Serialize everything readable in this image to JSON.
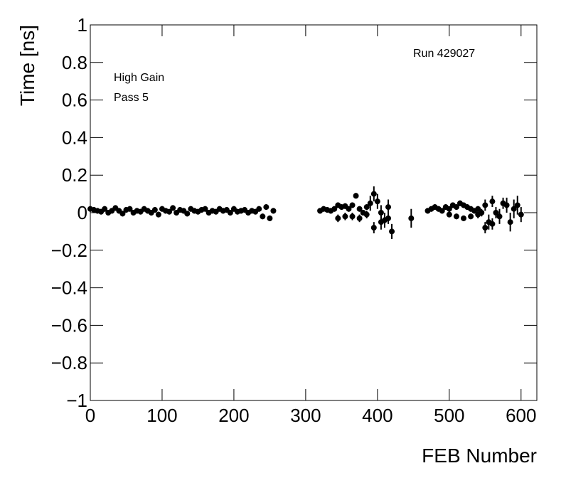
{
  "chart_data": {
    "type": "scatter",
    "ylabel": "Time [ns]",
    "xlabel": "FEB Number",
    "annotations": [
      "Run 429027",
      "High Gain",
      "Pass 5"
    ],
    "xlim": [
      0,
      622
    ],
    "ylim": [
      -1,
      1
    ],
    "xticks": [
      0,
      100,
      200,
      300,
      400,
      500,
      600
    ],
    "yticks": [
      {
        "value": -1,
        "label": "−1"
      },
      {
        "value": -0.8,
        "label": "−0.8"
      },
      {
        "value": -0.6,
        "label": "−0.6"
      },
      {
        "value": -0.4,
        "label": "−0.4"
      },
      {
        "value": -0.2,
        "label": "−0.2"
      },
      0,
      0.2,
      0.4,
      0.6,
      0.8,
      1
    ],
    "color": "#000000",
    "x": [
      0,
      5,
      10,
      15,
      20,
      25,
      30,
      35,
      40,
      45,
      50,
      55,
      60,
      65,
      70,
      75,
      80,
      85,
      90,
      95,
      100,
      105,
      110,
      115,
      120,
      125,
      130,
      135,
      140,
      145,
      150,
      155,
      160,
      165,
      170,
      175,
      180,
      185,
      190,
      195,
      200,
      205,
      210,
      215,
      220,
      225,
      230,
      235,
      240,
      245,
      250,
      255,
      320,
      325,
      330,
      335,
      340,
      345,
      350,
      355,
      360,
      365,
      370,
      375,
      380,
      385,
      390,
      395,
      400,
      405,
      410,
      415,
      420,
      345,
      355,
      365,
      375,
      385,
      395,
      405,
      415,
      447,
      470,
      475,
      480,
      485,
      490,
      495,
      500,
      505,
      510,
      515,
      520,
      525,
      530,
      535,
      540,
      545,
      550,
      555,
      560,
      565,
      570,
      575,
      580,
      585,
      590,
      595,
      600,
      500,
      510,
      520,
      530,
      540,
      550,
      560
    ],
    "y": [
      0.02,
      0.015,
      0.01,
      0.005,
      0.02,
      0.0,
      0.01,
      0.025,
      0.01,
      -0.005,
      0.015,
      0.02,
      0.0,
      0.01,
      0.005,
      0.02,
      0.01,
      0.0,
      0.015,
      -0.01,
      0.02,
      0.01,
      0.005,
      0.025,
      0.0,
      0.015,
      0.01,
      -0.005,
      0.02,
      0.01,
      0.005,
      0.015,
      0.02,
      0.0,
      0.01,
      0.005,
      0.02,
      0.01,
      0.015,
      0.0,
      0.02,
      0.005,
      0.01,
      0.015,
      0.0,
      0.01,
      0.005,
      0.02,
      -0.02,
      0.03,
      -0.03,
      0.01,
      0.01,
      0.02,
      0.015,
      0.01,
      0.02,
      0.04,
      0.03,
      0.035,
      0.02,
      0.04,
      0.09,
      0.02,
      0.0,
      0.03,
      0.05,
      0.1,
      0.06,
      0.0,
      -0.04,
      0.03,
      -0.1,
      -0.03,
      -0.02,
      -0.02,
      -0.03,
      -0.01,
      -0.08,
      -0.05,
      -0.03,
      -0.03,
      0.01,
      0.02,
      0.03,
      0.02,
      0.01,
      0.03,
      0.02,
      0.04,
      0.03,
      0.05,
      0.04,
      0.03,
      0.02,
      0.01,
      0.02,
      0.0,
      0.04,
      -0.05,
      0.06,
      0.0,
      -0.02,
      0.05,
      0.04,
      -0.05,
      0.02,
      0.04,
      -0.01,
      -0.01,
      -0.02,
      -0.03,
      -0.02,
      -0.01,
      -0.08,
      -0.06
    ],
    "errors": [
      0.015,
      0.015,
      0.015,
      0.015,
      0.015,
      0.015,
      0.015,
      0.015,
      0.015,
      0.015,
      0.015,
      0.015,
      0.015,
      0.015,
      0.015,
      0.015,
      0.015,
      0.015,
      0.015,
      0.015,
      0.015,
      0.015,
      0.015,
      0.015,
      0.015,
      0.015,
      0.015,
      0.015,
      0.015,
      0.015,
      0.015,
      0.015,
      0.015,
      0.015,
      0.015,
      0.015,
      0.015,
      0.015,
      0.015,
      0.015,
      0.015,
      0.015,
      0.015,
      0.015,
      0.015,
      0.015,
      0.015,
      0.015,
      0.015,
      0.015,
      0.015,
      0.015,
      0.015,
      0.015,
      0.015,
      0.015,
      0.015,
      0.015,
      0.015,
      0.015,
      0.015,
      0.015,
      0.015,
      0.015,
      0.015,
      0.015,
      0.04,
      0.04,
      0.04,
      0.04,
      0.04,
      0.04,
      0.04,
      0.02,
      0.02,
      0.02,
      0.02,
      0.02,
      0.03,
      0.04,
      0.03,
      0.05,
      0.015,
      0.015,
      0.015,
      0.015,
      0.015,
      0.015,
      0.015,
      0.015,
      0.015,
      0.015,
      0.015,
      0.015,
      0.015,
      0.015,
      0.015,
      0.02,
      0.03,
      0.04,
      0.03,
      0.03,
      0.04,
      0.03,
      0.04,
      0.05,
      0.05,
      0.05,
      0.04,
      0.015,
      0.015,
      0.015,
      0.015,
      0.02,
      0.03,
      0.03
    ]
  }
}
